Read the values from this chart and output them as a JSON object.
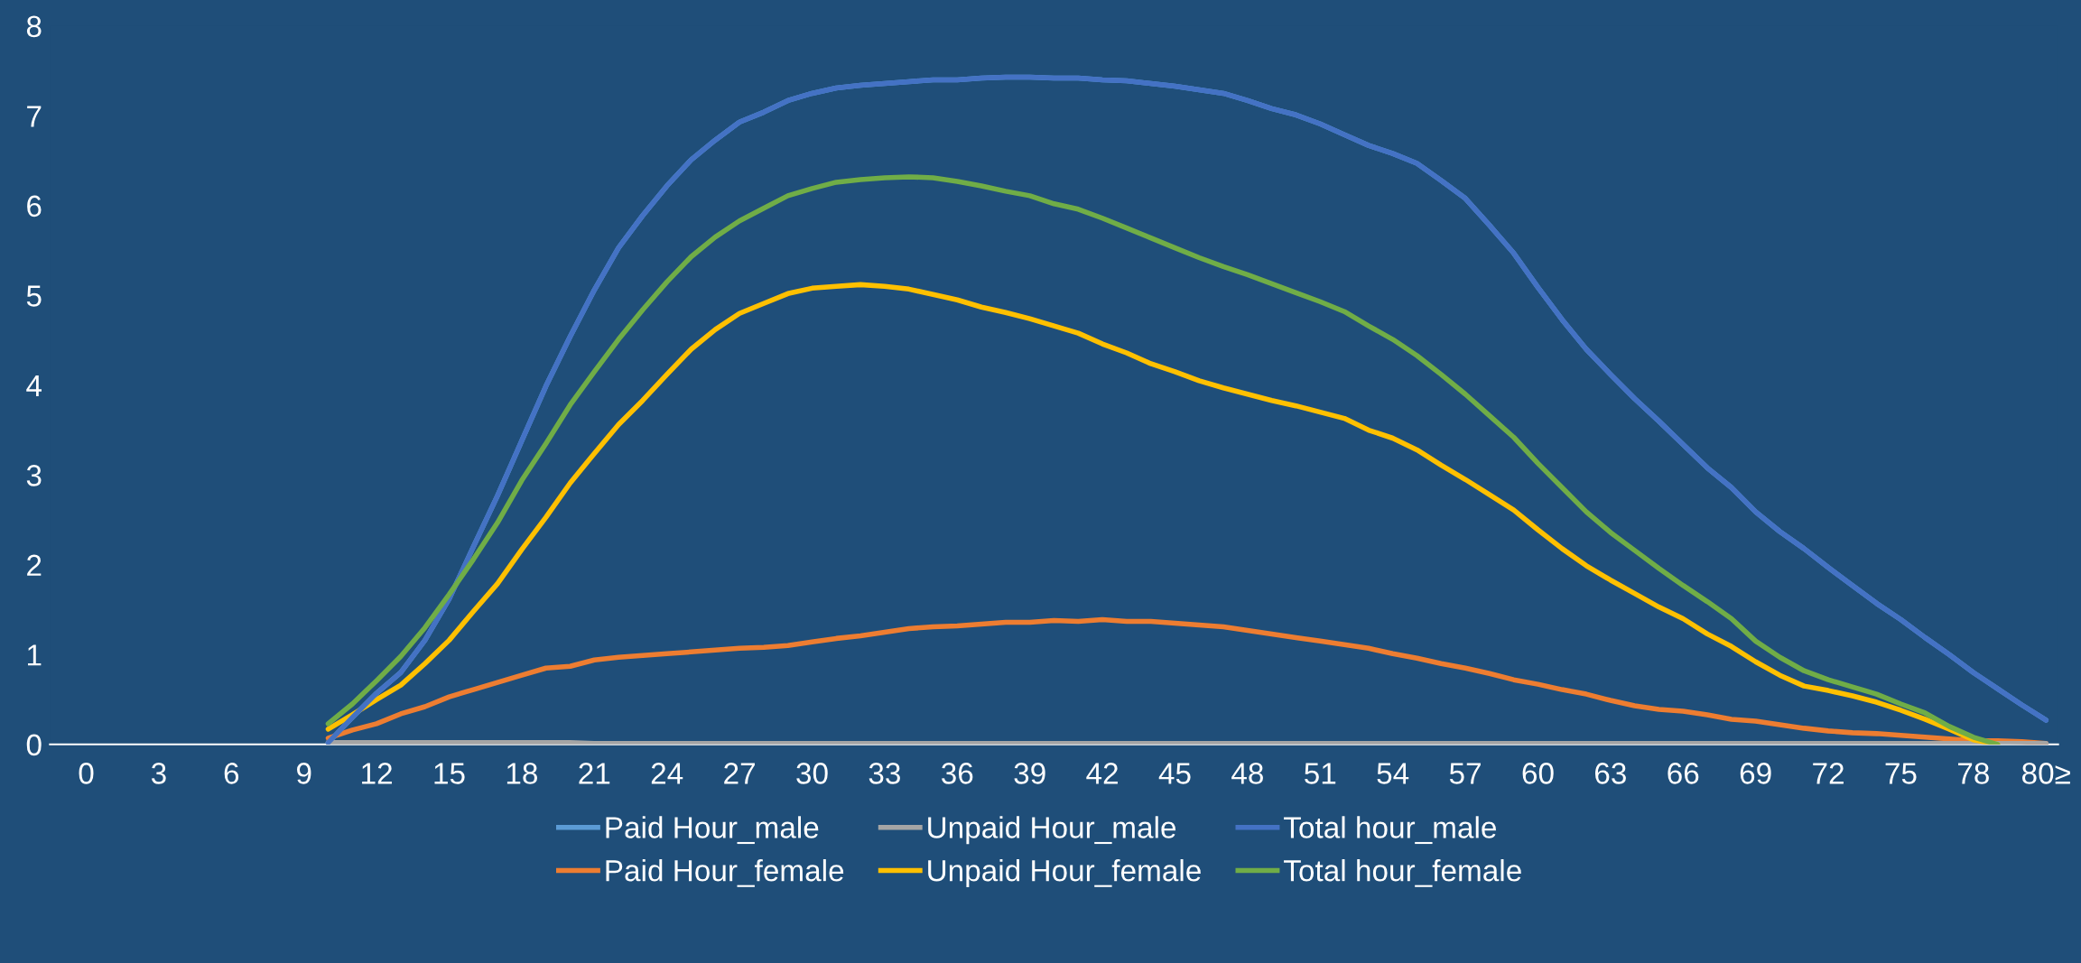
{
  "chart_data": {
    "type": "line",
    "categories": [
      "0",
      null,
      null,
      "3",
      null,
      null,
      "6",
      null,
      null,
      "9",
      null,
      null,
      "12",
      null,
      null,
      "15",
      null,
      null,
      "18",
      null,
      null,
      "21",
      null,
      null,
      "24",
      null,
      null,
      "27",
      null,
      null,
      "30",
      null,
      null,
      "33",
      null,
      null,
      "36",
      null,
      null,
      "39",
      null,
      null,
      "42",
      null,
      null,
      "45",
      null,
      null,
      "48",
      null,
      null,
      "51",
      null,
      null,
      "54",
      null,
      null,
      "57",
      null,
      null,
      "60",
      null,
      null,
      "63",
      null,
      null,
      "66",
      null,
      null,
      "69",
      null,
      null,
      "72",
      null,
      null,
      "75",
      null,
      null,
      "78",
      null,
      null,
      "80≥"
    ],
    "series": [
      {
        "name": "Paid Hour_male",
        "color": "#5b9bd5",
        "values": [
          null,
          null,
          null,
          null,
          null,
          null,
          null,
          null,
          null,
          null,
          0.02,
          0.3,
          0.57,
          0.8,
          1.16,
          1.62,
          2.2,
          2.77,
          3.38,
          3.99,
          4.54,
          5.06,
          5.53,
          5.89,
          6.22,
          6.51,
          6.73,
          6.93,
          7.04,
          7.17,
          7.25,
          7.31,
          7.34,
          7.36,
          7.38,
          7.4,
          7.4,
          7.42,
          7.43,
          7.43,
          7.42,
          7.42,
          7.4,
          7.39,
          7.36,
          7.33,
          7.29,
          7.25,
          7.17,
          7.08,
          7.01,
          6.91,
          6.79,
          6.67,
          6.58,
          6.47,
          6.28,
          6.08,
          5.78,
          5.47,
          5.09,
          4.73,
          4.4,
          4.12,
          3.85,
          3.6,
          3.34,
          3.08,
          2.86,
          2.59,
          2.37,
          2.18,
          1.97,
          1.77,
          1.57,
          1.39,
          1.19,
          1.0,
          0.8,
          0.62,
          0.44,
          0.27
        ]
      },
      {
        "name": "Paid Hour_female",
        "color": "#ed7d31",
        "values": [
          null,
          null,
          null,
          null,
          null,
          null,
          null,
          null,
          null,
          null,
          0.07,
          0.16,
          0.23,
          0.34,
          0.42,
          0.53,
          0.61,
          0.69,
          0.77,
          0.85,
          0.87,
          0.94,
          0.97,
          0.99,
          1.01,
          1.03,
          1.05,
          1.07,
          1.08,
          1.1,
          1.14,
          1.18,
          1.21,
          1.25,
          1.29,
          1.31,
          1.32,
          1.34,
          1.36,
          1.36,
          1.38,
          1.37,
          1.39,
          1.37,
          1.37,
          1.35,
          1.33,
          1.31,
          1.27,
          1.23,
          1.19,
          1.15,
          1.11,
          1.07,
          1.01,
          0.96,
          0.9,
          0.85,
          0.79,
          0.72,
          0.67,
          0.61,
          0.56,
          0.49,
          0.43,
          0.39,
          0.37,
          0.33,
          0.28,
          0.26,
          0.22,
          0.18,
          0.15,
          0.13,
          0.12,
          0.1,
          0.08,
          0.06,
          0.04,
          0.04,
          0.03,
          0.01
        ]
      },
      {
        "name": "Unpaid Hour_male",
        "color": "#a5a5a5",
        "values": [
          null,
          null,
          null,
          null,
          null,
          null,
          null,
          null,
          null,
          null,
          0.02,
          0.02,
          0.02,
          0.02,
          0.02,
          0.02,
          0.02,
          0.02,
          0.02,
          0.02,
          0.02,
          0.01,
          0.01,
          0.01,
          0.01,
          0.01,
          0.01,
          0.01,
          0.01,
          0.01,
          0.01,
          0.01,
          0.01,
          0.01,
          0.01,
          0.01,
          0.01,
          0.01,
          0.01,
          0.01,
          0.01,
          0.01,
          0.01,
          0.01,
          0.01,
          0.01,
          0.01,
          0.01,
          0.01,
          0.01,
          0.01,
          0.01,
          0.01,
          0.01,
          0.01,
          0.01,
          0.01,
          0.01,
          0.01,
          0.01,
          0.01,
          0.01,
          0.01,
          0.01,
          0.01,
          0.01,
          0.01,
          0.01,
          0.01,
          0.01,
          0.01,
          0.01,
          0.01,
          0.01,
          0.01,
          0.01,
          0.01,
          0.01,
          0.01,
          0.01,
          0.01,
          0.01
        ]
      },
      {
        "name": "Unpaid Hour_female",
        "color": "#ffc000",
        "values": [
          null,
          null,
          null,
          null,
          null,
          null,
          null,
          null,
          null,
          null,
          0.17,
          0.33,
          0.5,
          0.66,
          0.9,
          1.16,
          1.48,
          1.79,
          2.17,
          2.53,
          2.91,
          3.24,
          3.56,
          3.83,
          4.12,
          4.4,
          4.62,
          4.8,
          4.91,
          5.02,
          5.08,
          5.1,
          5.12,
          5.1,
          5.07,
          5.01,
          4.95,
          4.87,
          4.81,
          4.74,
          4.66,
          4.58,
          4.46,
          4.36,
          4.24,
          4.15,
          4.05,
          3.97,
          3.9,
          3.83,
          3.77,
          3.7,
          3.63,
          3.5,
          3.41,
          3.28,
          3.11,
          2.95,
          2.78,
          2.61,
          2.39,
          2.18,
          1.99,
          1.83,
          1.68,
          1.53,
          1.4,
          1.23,
          1.09,
          0.92,
          0.77,
          0.65,
          0.6,
          0.54,
          0.47,
          0.38,
          0.28,
          0.17,
          0.05,
          0.0,
          null,
          null
        ]
      },
      {
        "name": "Total hour_male",
        "color": "#4472c4",
        "values": [
          null,
          null,
          null,
          null,
          null,
          null,
          null,
          null,
          null,
          null,
          0.02,
          0.3,
          0.57,
          0.8,
          1.16,
          1.62,
          2.2,
          2.77,
          3.38,
          3.99,
          4.54,
          5.06,
          5.53,
          5.89,
          6.22,
          6.51,
          6.73,
          6.93,
          7.04,
          7.17,
          7.25,
          7.31,
          7.34,
          7.36,
          7.38,
          7.4,
          7.4,
          7.42,
          7.43,
          7.43,
          7.42,
          7.42,
          7.4,
          7.39,
          7.36,
          7.33,
          7.29,
          7.25,
          7.17,
          7.08,
          7.01,
          6.91,
          6.79,
          6.67,
          6.58,
          6.47,
          6.28,
          6.08,
          5.78,
          5.47,
          5.09,
          4.73,
          4.4,
          4.12,
          3.85,
          3.6,
          3.34,
          3.08,
          2.86,
          2.59,
          2.37,
          2.18,
          1.97,
          1.77,
          1.57,
          1.39,
          1.19,
          1.0,
          0.8,
          0.62,
          0.44,
          0.27
        ]
      },
      {
        "name": "Total hour_female",
        "color": "#70ad47",
        "values": [
          null,
          null,
          null,
          null,
          null,
          null,
          null,
          null,
          null,
          null,
          0.23,
          0.45,
          0.71,
          0.98,
          1.3,
          1.67,
          2.06,
          2.47,
          2.94,
          3.35,
          3.78,
          4.15,
          4.51,
          4.84,
          5.15,
          5.43,
          5.65,
          5.83,
          5.97,
          6.11,
          6.19,
          6.26,
          6.29,
          6.31,
          6.32,
          6.31,
          6.27,
          6.22,
          6.16,
          6.11,
          6.02,
          5.96,
          5.86,
          5.75,
          5.64,
          5.53,
          5.42,
          5.32,
          5.23,
          5.13,
          5.03,
          4.93,
          4.82,
          4.66,
          4.51,
          4.33,
          4.12,
          3.9,
          3.66,
          3.42,
          3.13,
          2.86,
          2.59,
          2.36,
          2.16,
          1.96,
          1.77,
          1.59,
          1.4,
          1.15,
          0.97,
          0.82,
          0.72,
          0.64,
          0.56,
          0.45,
          0.35,
          0.2,
          0.08,
          0.0,
          null,
          null
        ]
      }
    ],
    "ylim": [
      0,
      8
    ],
    "yticks": [
      0,
      1,
      2,
      3,
      4,
      5,
      6,
      7,
      8
    ],
    "legend": "bottom"
  }
}
